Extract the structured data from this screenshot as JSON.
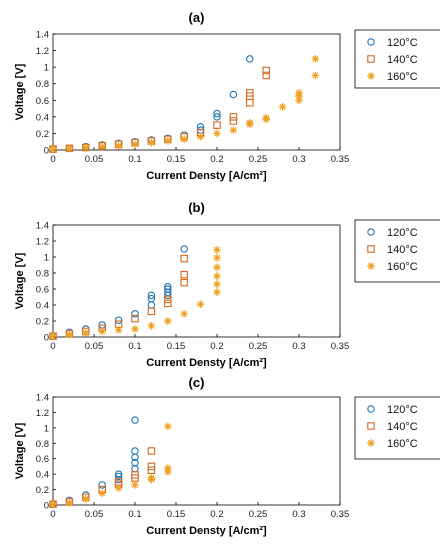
{
  "chart_data": [
    {
      "type": "scatter",
      "title": "(a)",
      "xlabel": "Current Densty [A/cm²]",
      "ylabel": "Voltage [V]",
      "xlim": [
        0,
        0.35
      ],
      "ylim": [
        0,
        1.4
      ],
      "xticks": [
        "0",
        "0.05",
        "0.1",
        "0.15",
        "0.2",
        "0.25",
        "0.3",
        "0.35"
      ],
      "yticks": [
        "0",
        "0.2",
        "0.4",
        "0.6",
        "0.8",
        "1",
        "1.2",
        "1.4"
      ],
      "legend": [
        "120°C",
        "140°C",
        "160°C"
      ],
      "legend_position": "right",
      "grid": false,
      "series": [
        {
          "name": "120°C",
          "marker": "circle",
          "color": "#1f77b4",
          "points": [
            [
              0,
              0.01
            ],
            [
              0.02,
              0.02
            ],
            [
              0.04,
              0.04
            ],
            [
              0.06,
              0.06
            ],
            [
              0.08,
              0.08
            ],
            [
              0.1,
              0.1
            ],
            [
              0.12,
              0.12
            ],
            [
              0.14,
              0.14
            ],
            [
              0.16,
              0.18
            ],
            [
              0.18,
              0.28
            ],
            [
              0.18,
              0.24
            ],
            [
              0.2,
              0.44
            ],
            [
              0.2,
              0.4
            ],
            [
              0.22,
              0.67
            ],
            [
              0.24,
              1.1
            ]
          ]
        },
        {
          "name": "140°C",
          "marker": "square",
          "color": "#d2691e",
          "points": [
            [
              0,
              0.01
            ],
            [
              0.02,
              0.02
            ],
            [
              0.04,
              0.03
            ],
            [
              0.06,
              0.05
            ],
            [
              0.08,
              0.07
            ],
            [
              0.1,
              0.09
            ],
            [
              0.12,
              0.11
            ],
            [
              0.14,
              0.13
            ],
            [
              0.16,
              0.16
            ],
            [
              0.18,
              0.21
            ],
            [
              0.2,
              0.3
            ],
            [
              0.22,
              0.35
            ],
            [
              0.22,
              0.4
            ],
            [
              0.24,
              0.57
            ],
            [
              0.24,
              0.65
            ],
            [
              0.24,
              0.69
            ],
            [
              0.26,
              0.9
            ],
            [
              0.26,
              0.96
            ]
          ]
        },
        {
          "name": "160°C",
          "marker": "asterisk",
          "color": "#f0a020",
          "points": [
            [
              0,
              0.01
            ],
            [
              0.02,
              0.02
            ],
            [
              0.04,
              0.03
            ],
            [
              0.06,
              0.04
            ],
            [
              0.08,
              0.05
            ],
            [
              0.1,
              0.07
            ],
            [
              0.12,
              0.09
            ],
            [
              0.14,
              0.11
            ],
            [
              0.16,
              0.13
            ],
            [
              0.18,
              0.16
            ],
            [
              0.2,
              0.2
            ],
            [
              0.22,
              0.24
            ],
            [
              0.24,
              0.31
            ],
            [
              0.24,
              0.33
            ],
            [
              0.26,
              0.37
            ],
            [
              0.26,
              0.39
            ],
            [
              0.28,
              0.52
            ],
            [
              0.3,
              0.6
            ],
            [
              0.3,
              0.65
            ],
            [
              0.3,
              0.69
            ],
            [
              0.32,
              0.9
            ],
            [
              0.32,
              1.1
            ]
          ]
        }
      ]
    },
    {
      "type": "scatter",
      "title": "(b)",
      "xlabel": "Current Densty [A/cm²]",
      "ylabel": "Voltage [V]",
      "xlim": [
        0,
        0.35
      ],
      "ylim": [
        0,
        1.4
      ],
      "xticks": [
        "0",
        "0.05",
        "0.1",
        "0.15",
        "0.2",
        "0.25",
        "0.3",
        "0.35"
      ],
      "yticks": [
        "0",
        "0.2",
        "0.4",
        "0.6",
        "0.8",
        "1",
        "1.2",
        "1.4"
      ],
      "legend": [
        "120°C",
        "140°C",
        "160°C"
      ],
      "legend_position": "right",
      "grid": false,
      "series": [
        {
          "name": "120°C",
          "marker": "circle",
          "color": "#1f77b4",
          "points": [
            [
              0,
              0.01
            ],
            [
              0.02,
              0.06
            ],
            [
              0.04,
              0.1
            ],
            [
              0.06,
              0.15
            ],
            [
              0.08,
              0.21
            ],
            [
              0.1,
              0.29
            ],
            [
              0.12,
              0.4
            ],
            [
              0.12,
              0.48
            ],
            [
              0.12,
              0.52
            ],
            [
              0.14,
              0.52
            ],
            [
              0.14,
              0.56
            ],
            [
              0.14,
              0.6
            ],
            [
              0.14,
              0.63
            ],
            [
              0.16,
              1.1
            ]
          ]
        },
        {
          "name": "140°C",
          "marker": "square",
          "color": "#d2691e",
          "points": [
            [
              0,
              0.01
            ],
            [
              0.02,
              0.04
            ],
            [
              0.04,
              0.07
            ],
            [
              0.06,
              0.11
            ],
            [
              0.08,
              0.16
            ],
            [
              0.1,
              0.23
            ],
            [
              0.12,
              0.32
            ],
            [
              0.14,
              0.42
            ],
            [
              0.14,
              0.47
            ],
            [
              0.16,
              0.68
            ],
            [
              0.16,
              0.78
            ],
            [
              0.16,
              0.98
            ]
          ]
        },
        {
          "name": "160°C",
          "marker": "asterisk",
          "color": "#f0a020",
          "points": [
            [
              0,
              0.01
            ],
            [
              0.02,
              0.03
            ],
            [
              0.04,
              0.05
            ],
            [
              0.06,
              0.07
            ],
            [
              0.08,
              0.09
            ],
            [
              0.1,
              0.1
            ],
            [
              0.12,
              0.14
            ],
            [
              0.14,
              0.2
            ],
            [
              0.16,
              0.29
            ],
            [
              0.18,
              0.41
            ],
            [
              0.2,
              0.56
            ],
            [
              0.2,
              0.66
            ],
            [
              0.2,
              0.76
            ],
            [
              0.2,
              0.87
            ],
            [
              0.2,
              0.99
            ],
            [
              0.2,
              1.09
            ]
          ]
        }
      ]
    },
    {
      "type": "scatter",
      "title": "(c)",
      "xlabel": "Current Densty [A/cm²]",
      "ylabel": "Voltage [V]",
      "xlim": [
        0,
        0.35
      ],
      "ylim": [
        0,
        1.4
      ],
      "xticks": [
        "0",
        "0.05",
        "0.1",
        "0.15",
        "0.2",
        "0.25",
        "0.3",
        "0.35"
      ],
      "yticks": [
        "0",
        "0.2",
        "0.4",
        "0.6",
        "0.8",
        "1",
        "1.2",
        "1.4"
      ],
      "legend": [
        "120°C",
        "140°C",
        "160°C"
      ],
      "legend_position": "right",
      "grid": false,
      "series": [
        {
          "name": "120°C",
          "marker": "circle",
          "color": "#1f77b4",
          "points": [
            [
              0,
              0.01
            ],
            [
              0.02,
              0.06
            ],
            [
              0.04,
              0.13
            ],
            [
              0.06,
              0.26
            ],
            [
              0.08,
              0.33
            ],
            [
              0.08,
              0.37
            ],
            [
              0.08,
              0.4
            ],
            [
              0.1,
              0.47
            ],
            [
              0.1,
              0.55
            ],
            [
              0.1,
              0.62
            ],
            [
              0.1,
              0.7
            ],
            [
              0.1,
              1.1
            ]
          ]
        },
        {
          "name": "140°C",
          "marker": "square",
          "color": "#d2691e",
          "points": [
            [
              0,
              0.01
            ],
            [
              0.02,
              0.04
            ],
            [
              0.04,
              0.1
            ],
            [
              0.06,
              0.2
            ],
            [
              0.08,
              0.27
            ],
            [
              0.08,
              0.3
            ],
            [
              0.1,
              0.35
            ],
            [
              0.1,
              0.39
            ],
            [
              0.12,
              0.45
            ],
            [
              0.12,
              0.5
            ],
            [
              0.12,
              0.7
            ]
          ]
        },
        {
          "name": "160°C",
          "marker": "asterisk",
          "color": "#f0a020",
          "points": [
            [
              0,
              0.01
            ],
            [
              0.02,
              0.03
            ],
            [
              0.04,
              0.08
            ],
            [
              0.06,
              0.15
            ],
            [
              0.08,
              0.22
            ],
            [
              0.1,
              0.26
            ],
            [
              0.12,
              0.33
            ],
            [
              0.12,
              0.35
            ],
            [
              0.14,
              0.43
            ],
            [
              0.14,
              0.48
            ],
            [
              0.14,
              1.02
            ]
          ]
        }
      ]
    }
  ]
}
